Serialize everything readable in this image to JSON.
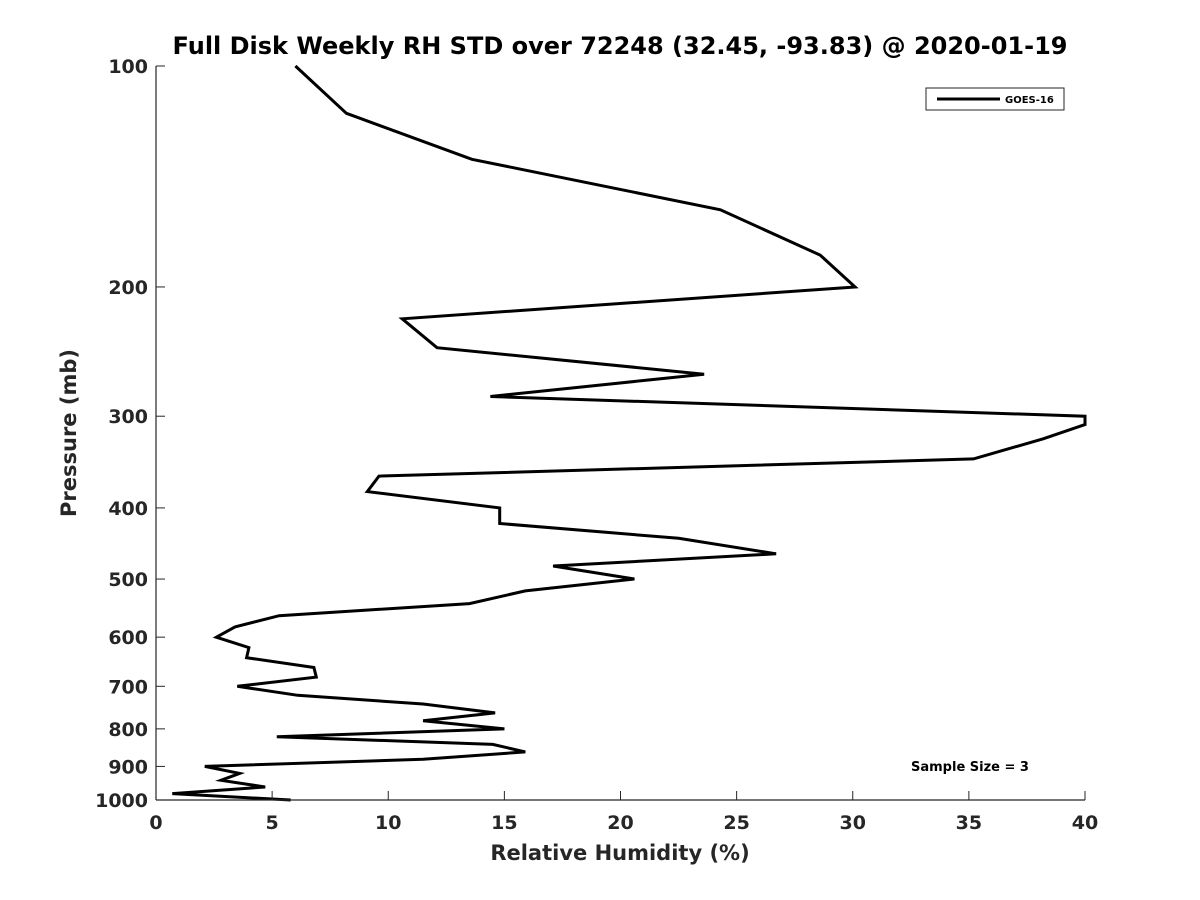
{
  "chart_data": {
    "type": "line",
    "title": "Full Disk Weekly RH STD over 72248 (32.45, -93.83) @ 2020-01-19",
    "xlabel": "Relative Humidity (%)",
    "ylabel": "Pressure (mb)",
    "xlim": [
      0,
      40
    ],
    "ylim": [
      100,
      1000
    ],
    "yscale": "log",
    "y_reversed": true,
    "xticks": [
      0,
      5,
      10,
      15,
      20,
      25,
      30,
      35,
      40
    ],
    "yticks": [
      100,
      200,
      300,
      400,
      500,
      600,
      700,
      800,
      900,
      1000
    ],
    "grid": false,
    "legend": {
      "location": "top-right"
    },
    "annotation": "Sample Size = 3",
    "series": [
      {
        "name": "GOES-16",
        "color": "#000000",
        "points": [
          [
            6.0,
            100
          ],
          [
            8.2,
            116
          ],
          [
            13.6,
            134
          ],
          [
            24.3,
            157
          ],
          [
            28.6,
            181
          ],
          [
            30.1,
            200
          ],
          [
            10.6,
            221
          ],
          [
            12.1,
            242
          ],
          [
            23.6,
            263
          ],
          [
            14.4,
            282
          ],
          [
            40.0,
            300
          ],
          [
            40.0,
            308
          ],
          [
            38.2,
            322
          ],
          [
            35.2,
            343
          ],
          [
            9.6,
            362
          ],
          [
            9.1,
            380
          ],
          [
            14.8,
            400
          ],
          [
            14.8,
            420
          ],
          [
            22.5,
            440
          ],
          [
            26.7,
            462
          ],
          [
            17.1,
            480
          ],
          [
            20.6,
            500
          ],
          [
            15.9,
            519
          ],
          [
            13.5,
            540
          ],
          [
            5.3,
            561
          ],
          [
            3.4,
            581
          ],
          [
            2.6,
            600
          ],
          [
            4.0,
            620
          ],
          [
            3.9,
            640
          ],
          [
            6.8,
            660
          ],
          [
            6.9,
            680
          ],
          [
            3.5,
            700
          ],
          [
            6.1,
            720
          ],
          [
            11.5,
            740
          ],
          [
            14.6,
            761
          ],
          [
            11.5,
            780
          ],
          [
            15.0,
            800
          ],
          [
            5.2,
            820
          ],
          [
            14.5,
            840
          ],
          [
            15.9,
            860
          ],
          [
            11.5,
            880
          ],
          [
            2.1,
            900
          ],
          [
            3.6,
            920
          ],
          [
            2.8,
            940
          ],
          [
            4.7,
            960
          ],
          [
            0.7,
            980
          ],
          [
            5.8,
            1000
          ]
        ]
      }
    ]
  }
}
